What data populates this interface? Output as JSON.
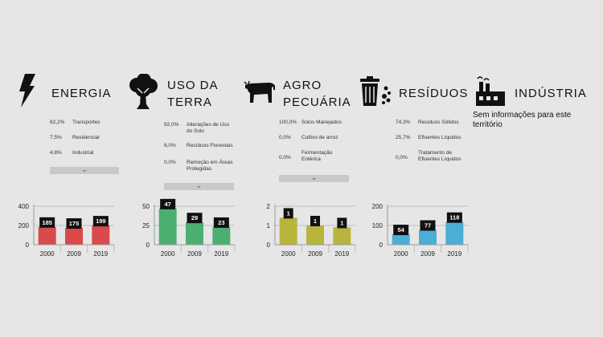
{
  "sectors": [
    {
      "id": "energia",
      "title": [
        "ENERGIA"
      ],
      "icon": "lightning-bolt-icon",
      "breakdown": [
        {
          "pct": "82,2%",
          "label": "Transportes"
        },
        {
          "pct": "7,5%",
          "label": "Residencial"
        },
        {
          "pct": "4,8%",
          "label": "Industrial"
        }
      ],
      "expand_icon": "chevron-down-icon",
      "chart": {
        "type": "bar",
        "categories": [
          "2000",
          "2009",
          "2019"
        ],
        "values": [
          185,
          175,
          199
        ],
        "ylim": [
          0,
          400
        ],
        "yticks": [
          "0",
          "200",
          "400"
        ],
        "color": "#d94a4a"
      }
    },
    {
      "id": "uso-da-terra",
      "title": [
        "USO DA",
        "TERRA"
      ],
      "icon": "tree-icon",
      "breakdown": [
        {
          "pct": "92,0%",
          "label": "Alterações de Uso do Solo"
        },
        {
          "pct": "8,0%",
          "label": "Resíduos Florestais"
        },
        {
          "pct": "0,0%",
          "label": "Remoção em Áreas Protegidas"
        }
      ],
      "expand_icon": "chevron-down-icon",
      "chart": {
        "type": "bar",
        "categories": [
          "2000",
          "2009",
          "2019"
        ],
        "values": [
          47,
          29,
          23
        ],
        "ylim": [
          0,
          50
        ],
        "yticks": [
          "0",
          "25",
          "50"
        ],
        "color": "#4caf72"
      }
    },
    {
      "id": "agropecuaria",
      "title": [
        "AGRO",
        "PECUÁRIA"
      ],
      "icon": "cow-icon",
      "breakdown": [
        {
          "pct": "100,0%",
          "label": "Solos Manejados"
        },
        {
          "pct": "0,0%",
          "label": "Cultivo de arroz"
        },
        {
          "pct": "0,0%",
          "label": "Fermentação Entérica"
        }
      ],
      "expand_icon": "chevron-down-icon",
      "chart": {
        "type": "bar",
        "categories": [
          "2000",
          "2009",
          "2019"
        ],
        "values": [
          1.4,
          1.0,
          0.9
        ],
        "labels": [
          "1",
          "1",
          "1"
        ],
        "ylim": [
          0,
          2
        ],
        "yticks": [
          "0",
          "1",
          "2"
        ],
        "color": "#b8b53c"
      }
    },
    {
      "id": "residuos",
      "title": [
        "RESÍDUOS"
      ],
      "icon": "trash-can-icon",
      "breakdown": [
        {
          "pct": "74,3%",
          "label": "Resíduos Sólidos"
        },
        {
          "pct": "25,7%",
          "label": "Efluentes Líquidos"
        },
        {
          "pct": "0,0%",
          "label": "Tratamento de Efluentes Líquidos"
        }
      ],
      "chart": {
        "type": "bar",
        "categories": [
          "2000",
          "2009",
          "2019"
        ],
        "values": [
          54,
          77,
          118
        ],
        "ylim": [
          0,
          200
        ],
        "yticks": [
          "0",
          "100",
          "200"
        ],
        "color": "#4aaed6"
      }
    },
    {
      "id": "industria",
      "title": [
        "INDÚSTRIA"
      ],
      "icon": "factory-icon",
      "no_info": "Sem informações para este território"
    }
  ]
}
